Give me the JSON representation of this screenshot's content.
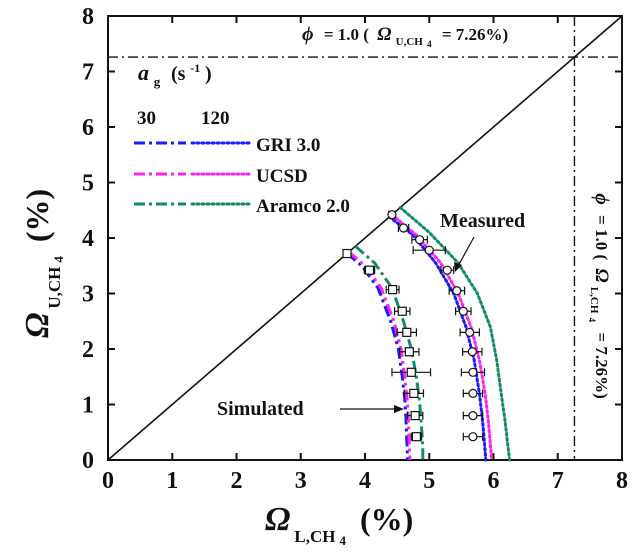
{
  "chart_data": {
    "type": "line",
    "xlim": [
      0,
      8
    ],
    "ylim": [
      0,
      8
    ],
    "xticks": [
      "0",
      "1",
      "2",
      "3",
      "4",
      "5",
      "6",
      "7",
      "8"
    ],
    "yticks": [
      "0",
      "1",
      "2",
      "3",
      "4",
      "5",
      "6",
      "7",
      "8"
    ],
    "xlabel": {
      "symbol": "Ω",
      "sub": "L,CH",
      "sub2": "4",
      "unit": "(%)"
    },
    "ylabel": {
      "symbol": "Ω",
      "sub": "U,CH",
      "sub2": "4",
      "unit": "(%)"
    },
    "grid": false,
    "legend": {
      "title": {
        "symbol": "a",
        "sub": "g",
        "unit": "(s",
        "exp": "-1",
        "close": ")"
      },
      "strain_rates": [
        "30",
        "120"
      ],
      "models": [
        "GRI 3.0",
        "UCSD",
        "Aramco 2.0"
      ],
      "colors": {
        "GRI 3.0": "#1a1aff",
        "UCSD": "#ff22ee",
        "Aramco 2.0": "#128a6e"
      }
    },
    "reference_lines": {
      "diagonal": {
        "from": [
          0,
          0
        ],
        "to": [
          8,
          8
        ]
      },
      "phi_horizontal": {
        "y": 7.26,
        "label": {
          "phi": "ϕ",
          "eq": "= 1.0 (",
          "omega": "Ω",
          "sub": "U,CH",
          "sub2": "4",
          "val": "= 7.26%)"
        }
      },
      "phi_vertical": {
        "x": 7.26,
        "label": {
          "phi": "ϕ",
          "eq": "= 1.0 (",
          "omega": "Ω",
          "sub": "L,CH",
          "sub2": "4",
          "val": "= 7.26%)"
        }
      }
    },
    "annotations": {
      "measured": "Measured",
      "simulated": "Simulated"
    },
    "series": [
      {
        "name": "GRI 3.0",
        "strain": "30",
        "style": "dashdot",
        "x": [
          3.72,
          3.95,
          4.2,
          4.4,
          4.52,
          4.58,
          4.62,
          4.64,
          4.65,
          4.66,
          4.66
        ],
        "y": [
          3.72,
          3.5,
          3.1,
          2.5,
          2.0,
          1.5,
          1.1,
          0.7,
          0.35,
          0.1,
          0.0
        ]
      },
      {
        "name": "UCSD",
        "strain": "30",
        "style": "dashdot",
        "x": [
          3.75,
          4.0,
          4.25,
          4.45,
          4.56,
          4.62,
          4.66,
          4.68,
          4.69,
          4.7
        ],
        "y": [
          3.75,
          3.5,
          3.1,
          2.5,
          2.0,
          1.5,
          1.05,
          0.6,
          0.25,
          0.0
        ]
      },
      {
        "name": "Aramco 2.0",
        "strain": "30",
        "style": "dashdot",
        "x": [
          3.85,
          4.15,
          4.42,
          4.6,
          4.72,
          4.8,
          4.85,
          4.88,
          4.9,
          4.9
        ],
        "y": [
          3.85,
          3.55,
          3.1,
          2.5,
          2.0,
          1.5,
          1.05,
          0.6,
          0.25,
          0.0
        ]
      },
      {
        "name": "GRI 3.0",
        "strain": "120",
        "style": "dotted",
        "x": [
          4.38,
          4.75,
          5.1,
          5.38,
          5.57,
          5.7,
          5.78,
          5.83,
          5.86,
          5.88
        ],
        "y": [
          4.38,
          4.05,
          3.55,
          3.0,
          2.4,
          1.8,
          1.2,
          0.7,
          0.3,
          0.0
        ]
      },
      {
        "name": "UCSD",
        "strain": "120",
        "style": "dotted",
        "x": [
          4.42,
          4.8,
          5.18,
          5.45,
          5.65,
          5.78,
          5.87,
          5.92,
          5.95,
          5.97
        ],
        "y": [
          4.42,
          4.05,
          3.55,
          3.0,
          2.4,
          1.8,
          1.2,
          0.7,
          0.3,
          0.0
        ]
      },
      {
        "name": "Aramco 2.0",
        "strain": "120",
        "style": "dotted",
        "x": [
          4.55,
          5.0,
          5.45,
          5.75,
          5.95,
          6.05,
          6.12,
          6.18,
          6.22,
          6.25
        ],
        "y": [
          4.55,
          4.1,
          3.55,
          3.0,
          2.4,
          1.8,
          1.2,
          0.7,
          0.3,
          0.0
        ]
      }
    ],
    "measured_30": {
      "marker": "square",
      "x": [
        3.72,
        4.07,
        4.43,
        4.58,
        4.65,
        4.69,
        4.72,
        4.76,
        4.78,
        4.8
      ],
      "y": [
        3.72,
        3.42,
        3.07,
        2.68,
        2.3,
        1.95,
        1.58,
        1.2,
        0.8,
        0.42
      ],
      "xerr": [
        0.05,
        0.08,
        0.1,
        0.12,
        0.15,
        0.15,
        0.3,
        0.15,
        0.12,
        0.08
      ]
    },
    "measured_120": {
      "marker": "circle",
      "x": [
        4.42,
        4.6,
        4.85,
        5.0,
        5.28,
        5.43,
        5.53,
        5.63,
        5.67,
        5.68,
        5.68,
        5.68
      ],
      "y": [
        4.42,
        4.18,
        3.97,
        3.78,
        3.42,
        3.05,
        2.68,
        2.3,
        1.95,
        1.58,
        1.2,
        0.8
      ],
      "xerr": [
        0.05,
        0.08,
        0.12,
        0.25,
        0.1,
        0.12,
        0.12,
        0.15,
        0.15,
        0.18,
        0.15,
        0.15
      ]
    },
    "measured_120_extra": {
      "x": [
        5.68
      ],
      "y": [
        0.42
      ],
      "xerr": [
        0.15
      ]
    }
  }
}
